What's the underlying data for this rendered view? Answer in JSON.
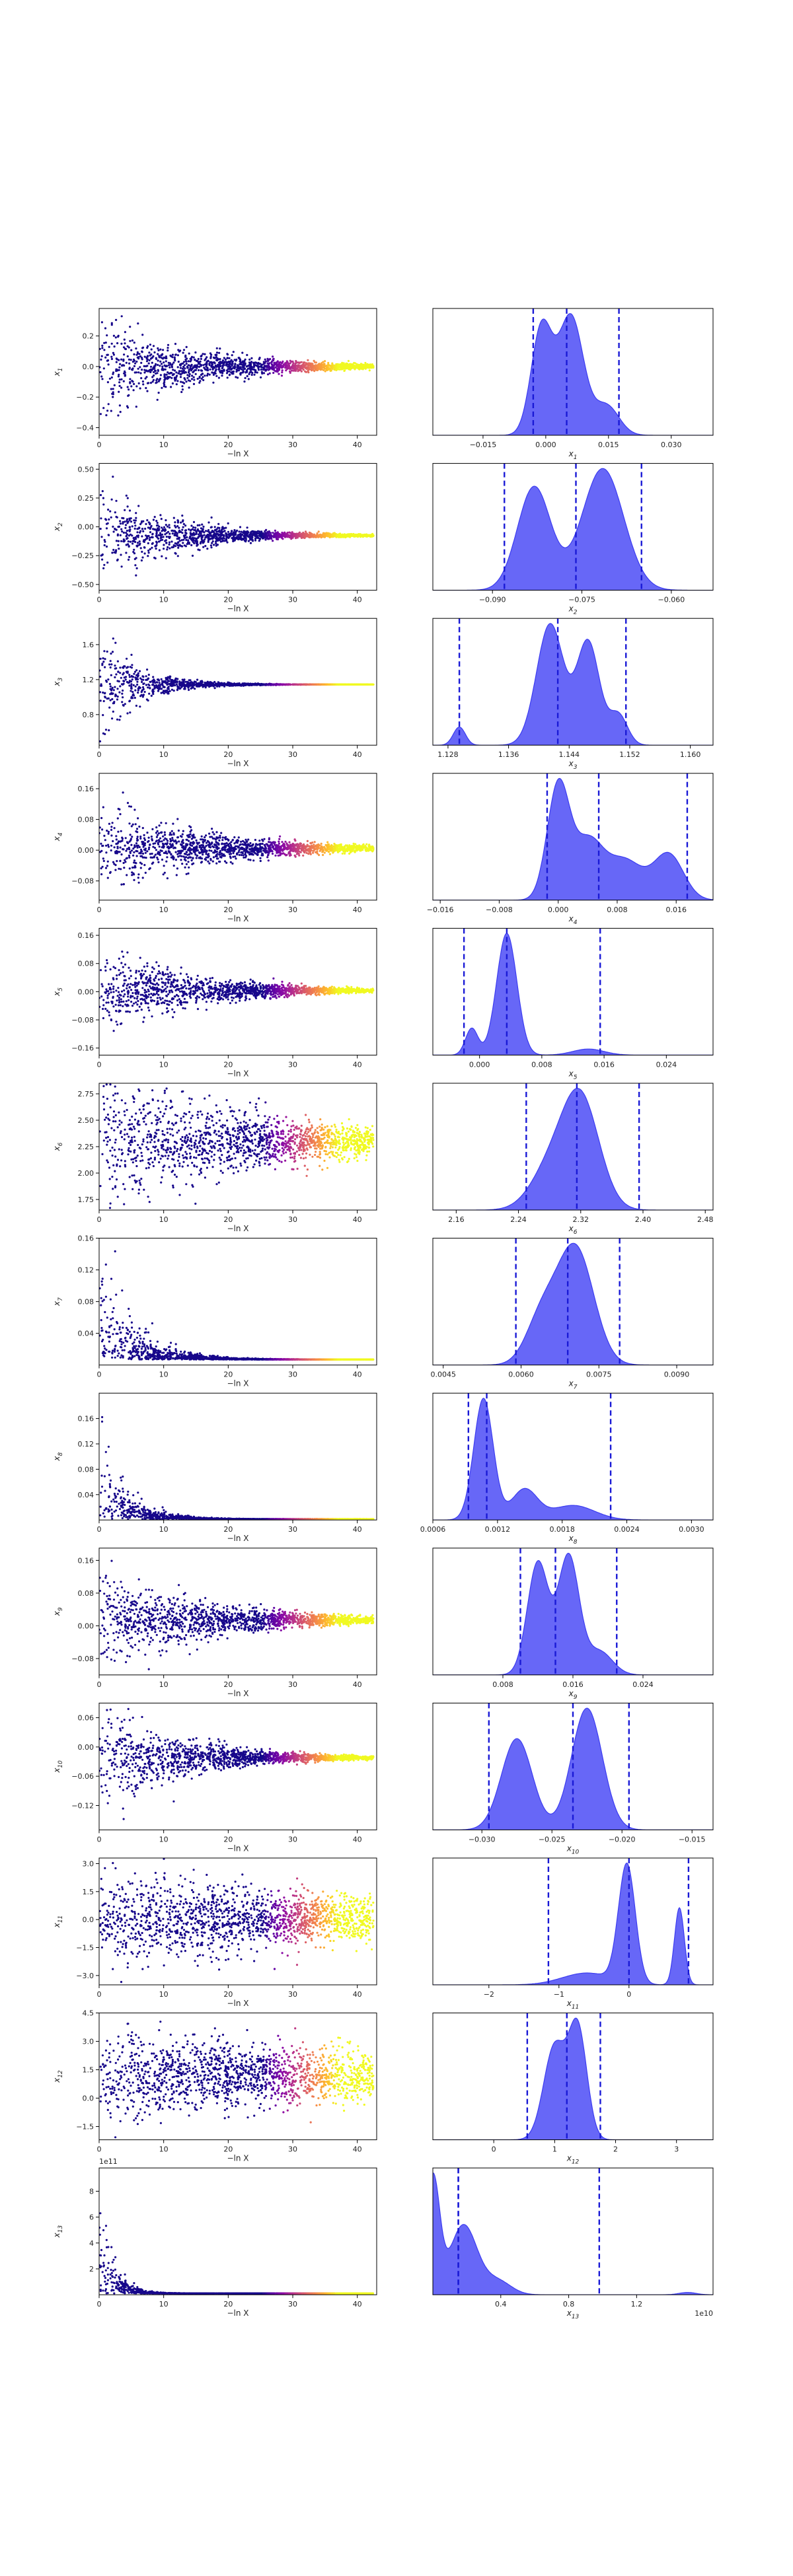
{
  "chart_data": [
    {
      "row": 1,
      "trace": {
        "type": "scatter",
        "xlabel": "−ln X",
        "ylabel": "x",
        "ysub": "1",
        "xlim": [
          0,
          43
        ],
        "ylim": [
          -0.45,
          0.38
        ],
        "xticks": [
          "0",
          "10",
          "20",
          "30",
          "40"
        ],
        "xtick_vals": [
          0,
          10,
          20,
          30,
          40
        ],
        "yticks": [
          "−0.4",
          "−0.2",
          "0.0",
          "0.2"
        ],
        "ytick_vals": [
          -0.4,
          -0.2,
          0,
          0.2
        ],
        "center": 0.0,
        "spread": 0.35,
        "decay": 0.07,
        "exp_label": ""
      },
      "posterior": {
        "type": "area",
        "xlabel": "x",
        "xsub": "1",
        "xlim": [
          -0.027,
          0.04
        ],
        "xticks": [
          "−0.015",
          "0.000",
          "0.015",
          "0.030"
        ],
        "xtick_vals": [
          -0.015,
          0,
          0.015,
          0.03
        ],
        "exp_label": "",
        "quantiles": [
          -0.003,
          0.005,
          0.0175
        ],
        "peaks": [
          [
            -0.001,
            0.9,
            0.0025
          ],
          [
            0.006,
            1.0,
            0.003
          ],
          [
            0.0145,
            0.25,
            0.003
          ]
        ]
      }
    },
    {
      "row": 2,
      "trace": {
        "type": "scatter",
        "xlabel": "−ln X",
        "ylabel": "x",
        "ysub": "2",
        "xlim": [
          0,
          43
        ],
        "ylim": [
          -0.55,
          0.55
        ],
        "xticks": [
          "0",
          "10",
          "20",
          "30",
          "40"
        ],
        "xtick_vals": [
          0,
          10,
          20,
          30,
          40
        ],
        "yticks": [
          "−0.50",
          "−0.25",
          "0.00",
          "0.25",
          "0.50"
        ],
        "ytick_vals": [
          -0.5,
          -0.25,
          0,
          0.25,
          0.5
        ],
        "center": -0.075,
        "spread": 0.45,
        "decay": 0.09,
        "exp_label": ""
      },
      "posterior": {
        "type": "area",
        "xlabel": "x",
        "xsub": "2",
        "xlim": [
          -0.1,
          -0.053
        ],
        "xticks": [
          "−0.090",
          "−0.075",
          "−0.060"
        ],
        "xtick_vals": [
          -0.09,
          -0.075,
          -0.06
        ],
        "exp_label": "",
        "quantiles": [
          -0.088,
          -0.076,
          -0.065
        ],
        "peaks": [
          [
            -0.083,
            0.85,
            0.0028
          ],
          [
            -0.0715,
            1.0,
            0.0035
          ]
        ]
      }
    },
    {
      "row": 3,
      "trace": {
        "type": "scatter",
        "xlabel": "−ln X",
        "ylabel": "x",
        "ysub": "3",
        "xlim": [
          0,
          43
        ],
        "ylim": [
          0.45,
          1.9
        ],
        "xticks": [
          "0",
          "10",
          "20",
          "30",
          "40"
        ],
        "xtick_vals": [
          0,
          10,
          20,
          30,
          40
        ],
        "yticks": [
          "0.8",
          "1.2",
          "1.6"
        ],
        "ytick_vals": [
          0.8,
          1.2,
          1.6
        ],
        "center": 1.144,
        "spread": 0.7,
        "decay": 0.18,
        "exp_label": ""
      },
      "posterior": {
        "type": "area",
        "xlabel": "x",
        "xsub": "3",
        "xlim": [
          1.126,
          1.163
        ],
        "xticks": [
          "1.128",
          "1.136",
          "1.144",
          "1.152",
          "1.160"
        ],
        "xtick_vals": [
          1.128,
          1.136,
          1.144,
          1.152,
          1.16
        ],
        "exp_label": "",
        "quantiles": [
          1.1295,
          1.1425,
          1.1515
        ],
        "peaks": [
          [
            1.1295,
            0.15,
            0.0008
          ],
          [
            1.1415,
            1.0,
            0.0018
          ],
          [
            1.1465,
            0.85,
            0.0015
          ],
          [
            1.1505,
            0.25,
            0.0012
          ]
        ]
      }
    },
    {
      "row": 4,
      "trace": {
        "type": "scatter",
        "xlabel": "−ln X",
        "ylabel": "x",
        "ysub": "4",
        "xlim": [
          0,
          43
        ],
        "ylim": [
          -0.13,
          0.2
        ],
        "xticks": [
          "0",
          "10",
          "20",
          "30",
          "40"
        ],
        "xtick_vals": [
          0,
          10,
          20,
          30,
          40
        ],
        "yticks": [
          "−0.08",
          "0.00",
          "0.08",
          "0.16"
        ],
        "ytick_vals": [
          -0.08,
          0,
          0.08,
          0.16
        ],
        "center": 0.005,
        "spread": 0.12,
        "decay": 0.06,
        "exp_label": ""
      },
      "posterior": {
        "type": "area",
        "xlabel": "x",
        "xsub": "4",
        "xlim": [
          -0.017,
          0.021
        ],
        "xticks": [
          "−0.016",
          "−0.008",
          "0.000",
          "0.008",
          "0.016"
        ],
        "xtick_vals": [
          -0.016,
          -0.008,
          0,
          0.008,
          0.016
        ],
        "exp_label": "",
        "quantiles": [
          -0.0015,
          0.0055,
          0.0175
        ],
        "peaks": [
          [
            0.0,
            1.0,
            0.0015
          ],
          [
            0.004,
            0.5,
            0.002
          ],
          [
            0.009,
            0.35,
            0.0025
          ],
          [
            0.015,
            0.4,
            0.002
          ]
        ]
      }
    },
    {
      "row": 5,
      "trace": {
        "type": "scatter",
        "xlabel": "−ln X",
        "ylabel": "x",
        "ysub": "5",
        "xlim": [
          0,
          43
        ],
        "ylim": [
          -0.18,
          0.18
        ],
        "xticks": [
          "0",
          "10",
          "20",
          "30",
          "40"
        ],
        "xtick_vals": [
          0,
          10,
          20,
          30,
          40
        ],
        "yticks": [
          "−0.16",
          "−0.08",
          "0.00",
          "0.08",
          "0.16"
        ],
        "ytick_vals": [
          -0.16,
          -0.08,
          0,
          0.08,
          0.16
        ],
        "center": 0.003,
        "spread": 0.13,
        "decay": 0.07,
        "exp_label": ""
      },
      "posterior": {
        "type": "area",
        "xlabel": "x",
        "xsub": "5",
        "xlim": [
          -0.006,
          0.03
        ],
        "xticks": [
          "0.000",
          "0.008",
          "0.016",
          "0.024"
        ],
        "xtick_vals": [
          0,
          0.008,
          0.016,
          0.024
        ],
        "exp_label": "",
        "quantiles": [
          -0.002,
          0.0035,
          0.0155
        ],
        "peaks": [
          [
            -0.001,
            0.22,
            0.0008
          ],
          [
            0.0035,
            1.0,
            0.0013
          ],
          [
            0.014,
            0.05,
            0.002
          ]
        ]
      }
    },
    {
      "row": 6,
      "trace": {
        "type": "scatter",
        "xlabel": "−ln X",
        "ylabel": "x",
        "ysub": "6",
        "xlim": [
          0,
          43
        ],
        "ylim": [
          1.65,
          2.85
        ],
        "xticks": [
          "0",
          "10",
          "20",
          "30",
          "40"
        ],
        "xtick_vals": [
          0,
          10,
          20,
          30,
          40
        ],
        "yticks": [
          "1.75",
          "2.00",
          "2.25",
          "2.50",
          "2.75"
        ],
        "ytick_vals": [
          1.75,
          2,
          2.25,
          2.5,
          2.75
        ],
        "center": 2.3,
        "spread": 0.75,
        "decay": 0.04,
        "exp_label": ""
      },
      "posterior": {
        "type": "area",
        "xlabel": "x",
        "xsub": "6",
        "xlim": [
          2.13,
          2.49
        ],
        "xticks": [
          "2.16",
          "2.24",
          "2.32",
          "2.40",
          "2.48"
        ],
        "xtick_vals": [
          2.16,
          2.24,
          2.32,
          2.4,
          2.48
        ],
        "exp_label": "",
        "quantiles": [
          2.25,
          2.315,
          2.395
        ],
        "peaks": [
          [
            2.32,
            1.0,
            0.024
          ],
          [
            2.28,
            0.35,
            0.025
          ]
        ]
      }
    },
    {
      "row": 7,
      "trace": {
        "type": "scatter",
        "xlabel": "−ln X",
        "ylabel": "x",
        "ysub": "7",
        "xlim": [
          0,
          43
        ],
        "ylim": [
          0.0,
          0.16
        ],
        "xticks": [
          "0",
          "10",
          "20",
          "30",
          "40"
        ],
        "xtick_vals": [
          0,
          10,
          20,
          30,
          40
        ],
        "yticks": [
          "0.04",
          "0.08",
          "0.12",
          "0.16"
        ],
        "ytick_vals": [
          0.04,
          0.08,
          0.12,
          0.16
        ],
        "center": 0.007,
        "spread": 0.13,
        "decay": 0.2,
        "exp_label": ""
      },
      "posterior": {
        "type": "area",
        "xlabel": "x",
        "xsub": "7",
        "xlim": [
          0.0043,
          0.0097
        ],
        "xticks": [
          "0.0045",
          "0.0060",
          "0.0075",
          "0.0090"
        ],
        "xtick_vals": [
          0.0045,
          0.006,
          0.0075,
          0.009
        ],
        "exp_label": "",
        "quantiles": [
          0.0059,
          0.0069,
          0.0079
        ],
        "peaks": [
          [
            0.00705,
            1.0,
            0.00035
          ],
          [
            0.0064,
            0.4,
            0.0003
          ]
        ]
      }
    },
    {
      "row": 8,
      "trace": {
        "type": "scatter",
        "xlabel": "−ln X",
        "ylabel": "x",
        "ysub": "8",
        "xlim": [
          0,
          43
        ],
        "ylim": [
          0.0,
          0.2
        ],
        "xticks": [
          "0",
          "10",
          "20",
          "30",
          "40"
        ],
        "xtick_vals": [
          0,
          10,
          20,
          30,
          40
        ],
        "yticks": [
          "0.04",
          "0.08",
          "0.12",
          "0.16"
        ],
        "ytick_vals": [
          0.04,
          0.08,
          0.12,
          0.16
        ],
        "center": 0.0012,
        "spread": 0.14,
        "decay": 0.25,
        "exp_label": ""
      },
      "posterior": {
        "type": "area",
        "xlabel": "x",
        "xsub": "8",
        "xlim": [
          0.0006,
          0.0032
        ],
        "xticks": [
          "0.0006",
          "0.0012",
          "0.0018",
          "0.0024",
          "0.0030"
        ],
        "xtick_vals": [
          0.0006,
          0.0012,
          0.0018,
          0.0024,
          0.003
        ],
        "exp_label": "",
        "quantiles": [
          0.00093,
          0.0011,
          0.00225
        ],
        "peaks": [
          [
            0.00107,
            1.0,
            9e-05
          ],
          [
            0.00145,
            0.25,
            0.00012
          ],
          [
            0.0019,
            0.12,
            0.0002
          ]
        ]
      }
    },
    {
      "row": 9,
      "trace": {
        "type": "scatter",
        "xlabel": "−ln X",
        "ylabel": "x",
        "ysub": "9",
        "xlim": [
          0,
          43
        ],
        "ylim": [
          -0.12,
          0.19
        ],
        "xticks": [
          "0",
          "10",
          "20",
          "30",
          "40"
        ],
        "xtick_vals": [
          0,
          10,
          20,
          30,
          40
        ],
        "yticks": [
          "−0.08",
          "0.00",
          "0.08",
          "0.16"
        ],
        "ytick_vals": [
          -0.08,
          0,
          0.08,
          0.16
        ],
        "center": 0.014,
        "spread": 0.13,
        "decay": 0.06,
        "exp_label": ""
      },
      "posterior": {
        "type": "area",
        "xlabel": "x",
        "xsub": "9",
        "xlim": [
          0.0,
          0.032
        ],
        "xticks": [
          "0.008",
          "0.016",
          "0.024"
        ],
        "xtick_vals": [
          0.008,
          0.016,
          0.024
        ],
        "exp_label": "",
        "quantiles": [
          0.01,
          0.014,
          0.021
        ],
        "peaks": [
          [
            0.012,
            0.95,
            0.0012
          ],
          [
            0.0155,
            1.0,
            0.0012
          ],
          [
            0.019,
            0.2,
            0.0015
          ]
        ]
      }
    },
    {
      "row": 10,
      "trace": {
        "type": "scatter",
        "xlabel": "−ln X",
        "ylabel": "x",
        "ysub": "10",
        "xlim": [
          0,
          43
        ],
        "ylim": [
          -0.17,
          0.09
        ],
        "xticks": [
          "0",
          "10",
          "20",
          "30",
          "40"
        ],
        "xtick_vals": [
          0,
          10,
          20,
          30,
          40
        ],
        "yticks": [
          "−0.12",
          "−0.06",
          "0.00",
          "0.06"
        ],
        "ytick_vals": [
          -0.12,
          -0.06,
          0,
          0.06
        ],
        "center": -0.022,
        "spread": 0.12,
        "decay": 0.08,
        "exp_label": ""
      },
      "posterior": {
        "type": "area",
        "xlabel": "x",
        "xsub": "10",
        "xlim": [
          -0.0335,
          -0.0135
        ],
        "xticks": [
          "−0.030",
          "−0.025",
          "−0.020",
          "−0.015"
        ],
        "xtick_vals": [
          -0.03,
          -0.025,
          -0.02,
          -0.015
        ],
        "exp_label": "",
        "quantiles": [
          -0.0295,
          -0.0235,
          -0.0195
        ],
        "peaks": [
          [
            -0.0275,
            0.75,
            0.0011
          ],
          [
            -0.0225,
            1.0,
            0.0011
          ]
        ]
      }
    },
    {
      "row": 11,
      "trace": {
        "type": "scatter",
        "xlabel": "−ln X",
        "ylabel": "x",
        "ysub": "11",
        "xlim": [
          0,
          43
        ],
        "ylim": [
          -3.5,
          3.3
        ],
        "xticks": [
          "0",
          "10",
          "20",
          "30",
          "40"
        ],
        "xtick_vals": [
          0,
          10,
          20,
          30,
          40
        ],
        "yticks": [
          "−3.0",
          "−1.5",
          "0.0",
          "1.5",
          "3.0"
        ],
        "ytick_vals": [
          -3,
          -1.5,
          0,
          1.5,
          3
        ],
        "center": 0.0,
        "spread": 2.6,
        "decay": 0.015,
        "exp_label": ""
      },
      "posterior": {
        "type": "area",
        "xlabel": "x",
        "xsub": "11",
        "xlim": [
          -2.8,
          1.2
        ],
        "xticks": [
          "−2",
          "−1",
          "0"
        ],
        "xtick_vals": [
          -2,
          -1,
          0
        ],
        "exp_label": "",
        "quantiles": [
          -1.15,
          0.0,
          0.85
        ],
        "peaks": [
          [
            -0.03,
            1.0,
            0.12
          ],
          [
            0.72,
            0.65,
            0.07
          ],
          [
            -0.6,
            0.1,
            0.35
          ]
        ]
      }
    },
    {
      "row": 12,
      "trace": {
        "type": "scatter",
        "xlabel": "−ln X",
        "ylabel": "x",
        "ysub": "12",
        "xlim": [
          0,
          43
        ],
        "ylim": [
          -2.2,
          4.5
        ],
        "xticks": [
          "0",
          "10",
          "20",
          "30",
          "40"
        ],
        "xtick_vals": [
          0,
          10,
          20,
          30,
          40
        ],
        "yticks": [
          "−1.5",
          "0.0",
          "1.5",
          "3.0",
          "4.5"
        ],
        "ytick_vals": [
          -1.5,
          0,
          1.5,
          3,
          4.5
        ],
        "center": 1.2,
        "spread": 2.7,
        "decay": 0.015,
        "exp_label": ""
      },
      "posterior": {
        "type": "area",
        "xlabel": "x",
        "xsub": "12",
        "xlim": [
          -1.0,
          3.6
        ],
        "xticks": [
          "0",
          "1",
          "2",
          "3"
        ],
        "xtick_vals": [
          0,
          1,
          2,
          3
        ],
        "exp_label": "",
        "quantiles": [
          0.55,
          1.2,
          1.75
        ],
        "peaks": [
          [
            1.0,
            0.85,
            0.18
          ],
          [
            1.38,
            1.0,
            0.15
          ]
        ]
      }
    },
    {
      "row": 13,
      "trace": {
        "type": "scatter",
        "xlabel": "−ln X",
        "ylabel": "x",
        "ysub": "13",
        "xlim": [
          0,
          43
        ],
        "ylim": [
          0,
          9.8
        ],
        "xticks": [
          "0",
          "10",
          "20",
          "30",
          "40"
        ],
        "xtick_vals": [
          0,
          10,
          20,
          30,
          40
        ],
        "yticks": [
          "2",
          "4",
          "6",
          "8"
        ],
        "ytick_vals": [
          2,
          4,
          6,
          8
        ],
        "center": 0.1,
        "spread": 8.5,
        "decay": 0.5,
        "exp_label": "1e11"
      },
      "posterior": {
        "type": "area",
        "xlabel": "x",
        "xsub": "13",
        "xlim": [
          0.0,
          1.65
        ],
        "xticks": [
          "0.4",
          "0.8",
          "1.2"
        ],
        "xtick_vals": [
          0.4,
          0.8,
          1.2
        ],
        "exp_label": "1e10",
        "quantiles": [
          0.15,
          0.15,
          0.98
        ],
        "peaks": [
          [
            0.0,
            1.0,
            0.04
          ],
          [
            0.18,
            0.6,
            0.08
          ],
          [
            0.38,
            0.12,
            0.08
          ],
          [
            1.5,
            0.02,
            0.05
          ]
        ]
      }
    }
  ]
}
